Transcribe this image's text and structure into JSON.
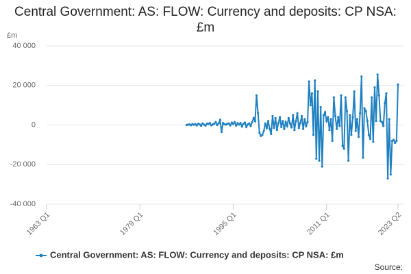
{
  "chart_data": {
    "type": "line",
    "title": "Central Government: AS: FLOW: Currency and deposits: CP NSA: £m",
    "y_label": "£m",
    "source": "Source:",
    "xlim": [
      1963,
      2023.25
    ],
    "xticks": [
      {
        "value": 1963,
        "label": "1963 Q1"
      },
      {
        "value": 1979,
        "label": "1979 Q1"
      },
      {
        "value": 1995,
        "label": "1995 Q1"
      },
      {
        "value": 2011,
        "label": "2011 Q1"
      },
      {
        "value": 2023.25,
        "label": "2023 Q2"
      }
    ],
    "ylim": [
      -40000,
      40000
    ],
    "yticks": [
      {
        "value": -40000,
        "label": "-40 000"
      },
      {
        "value": -20000,
        "label": "-20 000"
      },
      0,
      {
        "value": 20000,
        "label": "20 000"
      },
      {
        "value": 40000,
        "label": "40 000"
      }
    ],
    "grid": true,
    "legend": "bottom",
    "x": [
      1987,
      1987.25,
      1987.5,
      1987.75,
      1988,
      1988.25,
      1988.5,
      1988.75,
      1989,
      1989.25,
      1989.5,
      1989.75,
      1990,
      1990.25,
      1990.5,
      1990.75,
      1991,
      1991.25,
      1991.5,
      1991.75,
      1992,
      1992.25,
      1992.5,
      1992.75,
      1993,
      1993.25,
      1993.5,
      1993.75,
      1994,
      1994.25,
      1994.5,
      1994.75,
      1995,
      1995.25,
      1995.5,
      1995.75,
      1996,
      1996.25,
      1996.5,
      1996.75,
      1997,
      1997.25,
      1997.5,
      1997.75,
      1998,
      1998.25,
      1998.5,
      1998.75,
      1999,
      1999.25,
      1999.5,
      1999.75,
      2000,
      2000.25,
      2000.5,
      2000.75,
      2001,
      2001.25,
      2001.5,
      2001.75,
      2002,
      2002.25,
      2002.5,
      2002.75,
      2003,
      2003.25,
      2003.5,
      2003.75,
      2004,
      2004.25,
      2004.5,
      2004.75,
      2005,
      2005.25,
      2005.5,
      2005.75,
      2006,
      2006.25,
      2006.5,
      2006.75,
      2007,
      2007.25,
      2007.5,
      2007.75,
      2008,
      2008.25,
      2008.5,
      2008.75,
      2009,
      2009.25,
      2009.5,
      2009.75,
      2010,
      2010.25,
      2010.5,
      2010.75,
      2011,
      2011.25,
      2011.5,
      2011.75,
      2012,
      2012.25,
      2012.5,
      2012.75,
      2013,
      2013.25,
      2013.5,
      2013.75,
      2014,
      2014.25,
      2014.5,
      2014.75,
      2015,
      2015.25,
      2015.5,
      2015.75,
      2016,
      2016.25,
      2016.5,
      2016.75,
      2017,
      2017.25,
      2017.5,
      2017.75,
      2018,
      2018.25,
      2018.5,
      2018.75,
      2019,
      2019.25,
      2019.5,
      2019.75,
      2020,
      2020.25,
      2020.5,
      2020.75,
      2021,
      2021.25,
      2021.5,
      2021.75,
      2022,
      2022.25,
      2022.5,
      2022.75,
      2023,
      2023.25
    ],
    "series": [
      {
        "name": "Central Government: AS: FLOW: Currency and deposits: CP NSA: £m",
        "color": "#1f80c0",
        "values": [
          0,
          200,
          300,
          -100,
          400,
          100,
          500,
          -200,
          600,
          300,
          -400,
          800,
          200,
          -300,
          700,
          500,
          1000,
          -200,
          300,
          600,
          1500,
          0,
          800,
          2500,
          -3500,
          1000,
          400,
          200,
          600,
          800,
          -200,
          1200,
          500,
          1500,
          -300,
          900,
          200,
          1000,
          -800,
          600,
          1200,
          -1000,
          300,
          800,
          -500,
          1500,
          3500,
          2000,
          15000,
          6000,
          -4000,
          -5500,
          -5000,
          -3000,
          800,
          -1500,
          2000,
          -2000,
          -4500,
          4500,
          -1500,
          3500,
          -2500,
          1000,
          4000,
          -1000,
          2000,
          -2000,
          1500,
          -500,
          3500,
          800,
          -1200,
          5000,
          -2500,
          2000,
          6000,
          -1500,
          1000,
          4500,
          -2000,
          3000,
          -500,
          1500,
          22000,
          10000,
          16000,
          -5000,
          22500,
          -17000,
          17000,
          -18000,
          9000,
          -21000,
          5000,
          6500,
          2000,
          4000,
          -2500,
          3000,
          -8000,
          14000,
          4500,
          -2000,
          4000,
          -500,
          15000,
          -10500,
          -12000,
          14000,
          7000,
          -18000,
          5000,
          -5000,
          4000,
          17000,
          -3000,
          3000,
          -6000,
          6000,
          24500,
          -16500,
          8500,
          7000,
          2000,
          -5000,
          -7000,
          14000,
          -8500,
          19000,
          2000,
          25500,
          15000,
          2000,
          1500,
          -500,
          11000,
          16000,
          -27000,
          3000,
          -25000,
          -8000,
          -7500,
          -9000,
          -8000,
          20500
        ]
      }
    ]
  }
}
